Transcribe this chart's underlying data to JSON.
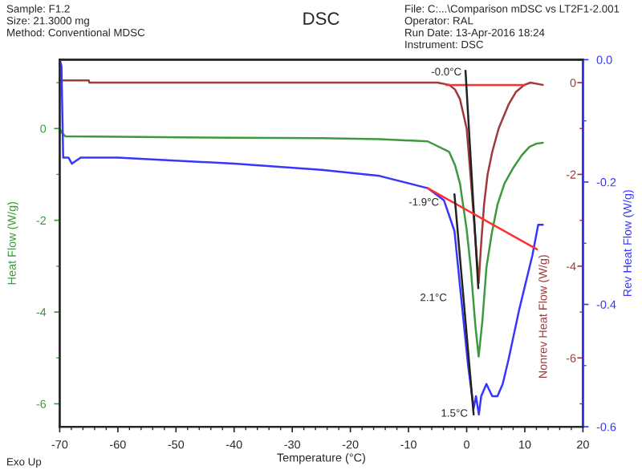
{
  "chart_data": {
    "type": "line",
    "title": "DSC",
    "xlabel": "Temperature (°C)",
    "ylabel": "Heat Flow (W/g)",
    "y2label": "Nonrev Heat Flow (W/g)",
    "y3label": "Rev Heat Flow (W/g)",
    "xlim": [
      -70,
      20
    ],
    "xticks": [
      -70,
      -60,
      -50,
      -40,
      -30,
      -20,
      -10,
      0,
      10,
      20
    ],
    "ylim": [
      -6.5,
      1.5
    ],
    "yticks": [
      -6,
      -4,
      -2,
      0
    ],
    "y2lim": [
      -7.5,
      0.5
    ],
    "y2ticks": [
      -6,
      -4,
      -2,
      0
    ],
    "y3lim": [
      -0.6,
      0.0
    ],
    "y3ticks": [
      {
        "value": -0.6,
        "label": "-0.6"
      },
      {
        "value": -0.4,
        "label": "-0.4"
      },
      {
        "value": -0.2,
        "label": "-0.2"
      },
      {
        "value": 0.0,
        "label": "0.0"
      }
    ],
    "grid": false,
    "legend": false,
    "series": [
      {
        "color": "#3c9a3c",
        "x": [
          -70,
          -69.6,
          -69,
          -60,
          -40,
          -25,
          -15,
          -6.7,
          -3,
          -2,
          -1.15,
          0,
          0.7,
          1.5,
          2.06,
          2.7,
          3.4,
          4.3,
          5.3,
          6.5,
          8,
          9.5,
          10.8,
          12,
          13.1
        ],
        "values": [
          0.0,
          -0.1,
          -0.17,
          -0.18,
          -0.2,
          -0.21,
          -0.23,
          -0.28,
          -0.51,
          -0.8,
          -1.2,
          -2.2,
          -3.03,
          -4.3,
          -4.97,
          -4.2,
          -3.03,
          -2.3,
          -1.66,
          -1.2,
          -0.86,
          -0.58,
          -0.4,
          -0.33,
          -0.31
        ]
      },
      {
        "color": "#9e3a3a",
        "axis": "y2",
        "x": [
          -70,
          -65,
          -64.9,
          -20,
          -5,
          -3,
          -2,
          -1.15,
          0,
          0.7,
          1.5,
          2.06,
          2.5,
          3,
          3.6,
          4.4,
          5.5,
          7.2,
          8.5,
          9.9,
          11,
          13.1
        ],
        "values": [
          0.05,
          0.05,
          0.0,
          0.0,
          0.0,
          -0.05,
          -0.15,
          -0.36,
          -1.0,
          -2.08,
          -3.4,
          -4.37,
          -3.5,
          -2.65,
          -2.0,
          -1.51,
          -1.0,
          -0.48,
          -0.2,
          -0.05,
          0.0,
          -0.05
        ]
      },
      {
        "color": "#3636ff",
        "axis": "y3",
        "x": [
          -70,
          -69.7,
          -69.4,
          -68.5,
          -67.9,
          -66.4,
          -60,
          -40,
          -25,
          -15,
          -6.7,
          -3.9,
          -2.1,
          -1.15,
          0.25,
          1.2,
          1.6,
          2.1,
          2.5,
          3.4,
          4.4,
          5.3,
          6.2,
          7.2,
          9,
          11.3,
          12.3,
          13.1
        ],
        "values": [
          0.0,
          -0.01,
          -0.16,
          -0.16,
          -0.17,
          -0.16,
          -0.16,
          -0.17,
          -0.18,
          -0.19,
          -0.21,
          -0.23,
          -0.28,
          -0.37,
          -0.5,
          -0.57,
          -0.55,
          -0.58,
          -0.55,
          -0.53,
          -0.55,
          -0.55,
          -0.53,
          -0.49,
          -0.41,
          -0.32,
          -0.27,
          -0.27
        ]
      },
      {
        "color": "#ff3030",
        "axis": "y2",
        "x": [
          -3.5,
          10
        ],
        "values": [
          -0.05,
          -0.05
        ]
      },
      {
        "color": "#ff3030",
        "axis": "y3",
        "x": [
          -6.7,
          12.1
        ],
        "values": [
          -0.21,
          -0.31
        ]
      },
      {
        "color": "#222222",
        "axis": "y2",
        "x": [
          -0.2,
          2.0
        ],
        "values": [
          0.26,
          -4.48
        ]
      },
      {
        "color": "#222222",
        "axis": "y3",
        "x": [
          -2.1,
          1.2
        ],
        "values": [
          -0.22,
          -0.58
        ]
      }
    ],
    "annotations": [
      "Sample: F1.2\nSize: 21.3000 mg\nMethod: Conventional MDSC",
      "File: C:...\\Comparison mDSC vs LT2F1-2.001\nOperator: RAL\nRun Date: 13-Apr-2016 18:24\nInstrument: DSC",
      "Exo Up",
      "-0.0°C",
      "-1.9°C",
      "2.1°C",
      "1.5°C"
    ]
  }
}
